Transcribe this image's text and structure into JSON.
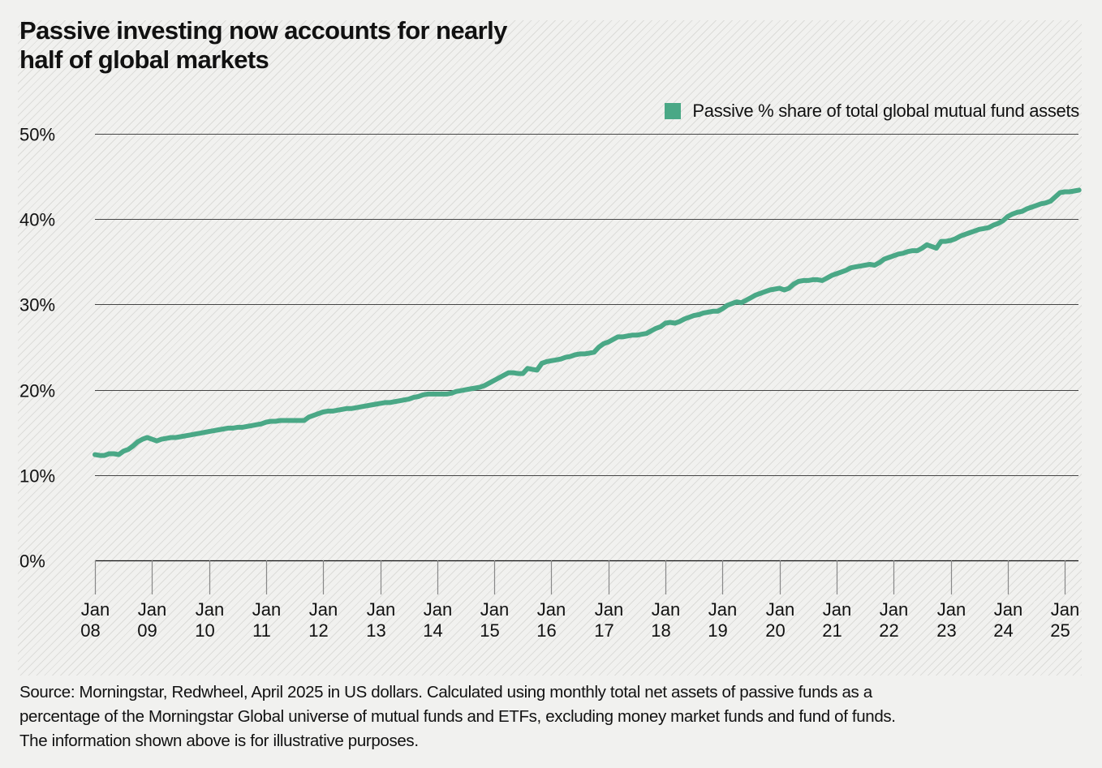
{
  "header": {
    "title_line1": "Passive investing now accounts for nearly",
    "title_line2": "half of global markets"
  },
  "footer": {
    "line1": "Source: Morningstar, Redwheel, April 2025 in US dollars. Calculated using monthly total net assets of passive funds as a",
    "line2": "percentage of the Morningstar Global universe of mutual funds and ETFs, excluding money market funds and fund of funds.",
    "line3": "The information shown above is for illustrative purposes."
  },
  "colors": {
    "series": "#4aa886",
    "gridline": "#444444",
    "baseline": "#111111",
    "tick": "#888888"
  },
  "chart_data": {
    "type": "line",
    "title": "Passive investing now accounts for nearly half of global markets",
    "xlabel": "",
    "ylabel": "",
    "ylim": [
      0,
      50
    ],
    "yticks": [
      0,
      10,
      20,
      30,
      40,
      50
    ],
    "ytick_labels": [
      "0%",
      "10%",
      "20%",
      "30%",
      "40%",
      "50%"
    ],
    "x_start": "Jan 2008",
    "x_end": "Apr 2025",
    "x_unit": "month",
    "xticks": [
      {
        "line1": "Jan",
        "line2": "08"
      },
      {
        "line1": "Jan",
        "line2": "09"
      },
      {
        "line1": "Jan",
        "line2": "10"
      },
      {
        "line1": "Jan",
        "line2": "11"
      },
      {
        "line1": "Jan",
        "line2": "12"
      },
      {
        "line1": "Jan",
        "line2": "13"
      },
      {
        "line1": "Jan",
        "line2": "14"
      },
      {
        "line1": "Jan",
        "line2": "15"
      },
      {
        "line1": "Jan",
        "line2": "16"
      },
      {
        "line1": "Jan",
        "line2": "17"
      },
      {
        "line1": "Jan",
        "line2": "18"
      },
      {
        "line1": "Jan",
        "line2": "19"
      },
      {
        "line1": "Jan",
        "line2": "20"
      },
      {
        "line1": "Jan",
        "line2": "21"
      },
      {
        "line1": "Jan",
        "line2": "22"
      },
      {
        "line1": "Jan",
        "line2": "23"
      },
      {
        "line1": "Jan",
        "line2": "24"
      },
      {
        "line1": "Jan",
        "line2": "25"
      }
    ],
    "grid": true,
    "legend_position": "top-right",
    "series": [
      {
        "name": "Passive % share of total global mutual fund assets",
        "values": [
          12.4,
          12.3,
          12.3,
          12.5,
          12.5,
          12.4,
          12.8,
          13.0,
          13.4,
          13.9,
          14.2,
          14.4,
          14.2,
          14.0,
          14.2,
          14.3,
          14.4,
          14.4,
          14.5,
          14.6,
          14.7,
          14.8,
          14.9,
          15.0,
          15.1,
          15.2,
          15.3,
          15.4,
          15.5,
          15.5,
          15.6,
          15.6,
          15.7,
          15.8,
          15.9,
          16.0,
          16.2,
          16.3,
          16.3,
          16.4,
          16.4,
          16.4,
          16.4,
          16.4,
          16.4,
          16.8,
          17.0,
          17.2,
          17.4,
          17.5,
          17.5,
          17.6,
          17.7,
          17.8,
          17.8,
          17.9,
          18.0,
          18.1,
          18.2,
          18.3,
          18.4,
          18.5,
          18.5,
          18.6,
          18.7,
          18.8,
          18.9,
          19.1,
          19.2,
          19.4,
          19.5,
          19.5,
          19.5,
          19.5,
          19.5,
          19.6,
          19.8,
          19.9,
          20.0,
          20.1,
          20.2,
          20.3,
          20.5,
          20.8,
          21.1,
          21.4,
          21.7,
          22.0,
          22.0,
          21.9,
          21.9,
          22.5,
          22.4,
          22.3,
          23.1,
          23.3,
          23.4,
          23.5,
          23.6,
          23.8,
          23.9,
          24.1,
          24.2,
          24.2,
          24.3,
          24.4,
          25.0,
          25.4,
          25.6,
          25.9,
          26.2,
          26.2,
          26.3,
          26.4,
          26.4,
          26.5,
          26.6,
          26.9,
          27.2,
          27.4,
          27.8,
          27.9,
          27.8,
          28.0,
          28.3,
          28.5,
          28.7,
          28.8,
          29.0,
          29.1,
          29.2,
          29.2,
          29.5,
          29.9,
          30.1,
          30.3,
          30.2,
          30.5,
          30.8,
          31.1,
          31.3,
          31.5,
          31.7,
          31.8,
          31.9,
          31.7,
          31.9,
          32.4,
          32.7,
          32.8,
          32.8,
          32.9,
          32.9,
          32.8,
          33.1,
          33.4,
          33.6,
          33.8,
          34.0,
          34.3,
          34.4,
          34.5,
          34.6,
          34.7,
          34.6,
          34.9,
          35.3,
          35.5,
          35.7,
          35.9,
          36.0,
          36.2,
          36.3,
          36.3,
          36.6,
          37.0,
          36.8,
          36.6,
          37.4,
          37.4,
          37.5,
          37.7,
          38.0,
          38.2,
          38.4,
          38.6,
          38.8,
          38.9,
          39.0,
          39.3,
          39.5,
          39.8,
          40.3,
          40.6,
          40.8,
          40.9,
          41.2,
          41.4,
          41.6,
          41.8,
          41.9,
          42.1,
          42.6,
          43.1,
          43.2,
          43.2,
          43.3,
          43.4
        ]
      }
    ]
  }
}
